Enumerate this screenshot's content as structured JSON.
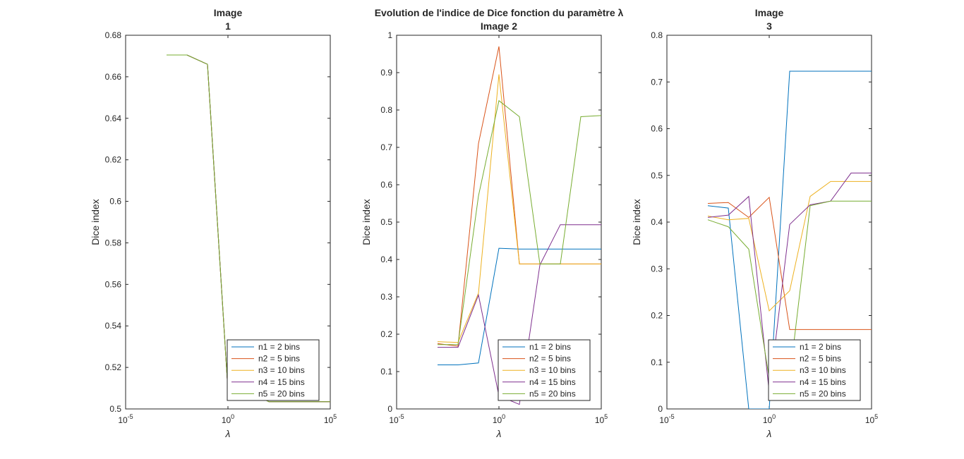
{
  "figure_title": "Evolution de l'indice de Dice fonction du paramètre λ",
  "legend_entries": [
    "n1 = 2 bins",
    "n2 = 5 bins",
    "n3 = 10 bins",
    "n4 = 15 bins",
    "n5 = 20 bins"
  ],
  "series_colors": [
    "#0072BD",
    "#D95319",
    "#EDB120",
    "#7E2F8E",
    "#77AC30"
  ],
  "chart_data": [
    {
      "type": "line",
      "title_lines": [
        "Image",
        "1"
      ],
      "xlabel": "λ",
      "ylabel": "Dice index",
      "xscale": "log",
      "xlim": [
        -5,
        5
      ],
      "xticks": [
        {
          "mant": "10",
          "exp": "-5",
          "v": -5
        },
        {
          "mant": "10",
          "exp": "0",
          "v": 0
        },
        {
          "mant": "10",
          "exp": "5",
          "v": 5
        }
      ],
      "ylim": [
        0.5,
        0.68
      ],
      "yticks": [
        "0.5",
        "0.52",
        "0.54",
        "0.56",
        "0.58",
        "0.6",
        "0.62",
        "0.64",
        "0.66",
        "0.68"
      ],
      "legend_loc": "bottom-right",
      "x_log10": [
        -3,
        -2,
        -1,
        0,
        1,
        2,
        3,
        4,
        5
      ],
      "series": [
        {
          "name": "n1 = 2 bins",
          "values": [
            0.6705,
            0.6705,
            0.666,
            0.509,
            0.5085,
            0.5035,
            0.5035,
            0.5035,
            0.5035
          ]
        },
        {
          "name": "n2 = 5 bins",
          "values": [
            0.6705,
            0.6705,
            0.666,
            0.509,
            0.5085,
            0.5035,
            0.5035,
            0.5035,
            0.5035
          ]
        },
        {
          "name": "n3 = 10 bins",
          "values": [
            0.6705,
            0.6705,
            0.666,
            0.509,
            0.5085,
            0.5035,
            0.5035,
            0.5035,
            0.5035
          ]
        },
        {
          "name": "n4 = 15 bins",
          "values": [
            0.6705,
            0.6705,
            0.666,
            0.509,
            0.5085,
            0.5035,
            0.5035,
            0.5035,
            0.5035
          ]
        },
        {
          "name": "n5 = 20 bins",
          "values": [
            0.6705,
            0.6705,
            0.666,
            0.509,
            0.5085,
            0.5035,
            0.5035,
            0.5035,
            0.5035
          ]
        }
      ]
    },
    {
      "type": "line",
      "title_lines": [
        "Image 2"
      ],
      "xlabel": "λ",
      "ylabel": "Dice index",
      "xscale": "log",
      "xlim": [
        -5,
        5
      ],
      "xticks": [
        {
          "mant": "10",
          "exp": "-5",
          "v": -5
        },
        {
          "mant": "10",
          "exp": "0",
          "v": 0
        },
        {
          "mant": "10",
          "exp": "5",
          "v": 5
        }
      ],
      "ylim": [
        0,
        1
      ],
      "yticks": [
        "0",
        "0.1",
        "0.2",
        "0.3",
        "0.4",
        "0.5",
        "0.6",
        "0.7",
        "0.8",
        "0.9",
        "1"
      ],
      "legend_loc": "bottom-right",
      "x_log10": [
        -3,
        -2,
        -1,
        0,
        1,
        2,
        3,
        4,
        5
      ],
      "series": [
        {
          "name": "n1 = 2 bins",
          "values": [
            0.118,
            0.118,
            0.123,
            0.43,
            0.428,
            0.428,
            0.428,
            0.428,
            0.428
          ]
        },
        {
          "name": "n2 = 5 bins",
          "values": [
            0.175,
            0.168,
            0.71,
            0.97,
            0.388,
            0.388,
            0.388,
            0.388,
            0.388
          ]
        },
        {
          "name": "n3 = 10 bins",
          "values": [
            0.18,
            0.178,
            0.31,
            0.895,
            0.388,
            0.388,
            0.388,
            0.388,
            0.388
          ]
        },
        {
          "name": "n4 = 15 bins",
          "values": [
            0.165,
            0.165,
            0.305,
            0.035,
            0.012,
            0.385,
            0.493,
            0.493,
            0.493
          ]
        },
        {
          "name": "n5 = 20 bins",
          "values": [
            0.172,
            0.172,
            0.57,
            0.825,
            0.782,
            0.388,
            0.388,
            0.782,
            0.785
          ]
        }
      ]
    },
    {
      "type": "line",
      "title_lines": [
        "Image",
        "3"
      ],
      "xlabel": "λ",
      "ylabel": "Dice index",
      "xscale": "log",
      "xlim": [
        -5,
        5
      ],
      "xticks": [
        {
          "mant": "10",
          "exp": "-5",
          "v": -5
        },
        {
          "mant": "10",
          "exp": "0",
          "v": 0
        },
        {
          "mant": "10",
          "exp": "5",
          "v": 5
        }
      ],
      "ylim": [
        0,
        0.8
      ],
      "yticks": [
        "0",
        "0.1",
        "0.2",
        "0.3",
        "0.4",
        "0.5",
        "0.6",
        "0.7",
        "0.8"
      ],
      "legend_loc": "bottom-right",
      "x_log10": [
        -3,
        -2,
        -1,
        0,
        1,
        2,
        3,
        4,
        5
      ],
      "series": [
        {
          "name": "n1 = 2 bins",
          "values": [
            0.435,
            0.43,
            0.0,
            0.0,
            0.723,
            0.723,
            0.723,
            0.723,
            0.723
          ]
        },
        {
          "name": "n2 = 5 bins",
          "values": [
            0.44,
            0.442,
            0.41,
            0.453,
            0.17,
            0.17,
            0.17,
            0.17,
            0.17
          ]
        },
        {
          "name": "n3 = 10 bins",
          "values": [
            0.413,
            0.405,
            0.408,
            0.21,
            0.253,
            0.455,
            0.487,
            0.487,
            0.487
          ]
        },
        {
          "name": "n4 = 15 bins",
          "values": [
            0.41,
            0.415,
            0.455,
            0.035,
            0.395,
            0.437,
            0.445,
            0.505,
            0.505
          ]
        },
        {
          "name": "n5 = 20 bins",
          "values": [
            0.405,
            0.39,
            0.342,
            0.065,
            0.066,
            0.435,
            0.445,
            0.445,
            0.445
          ]
        }
      ]
    }
  ]
}
